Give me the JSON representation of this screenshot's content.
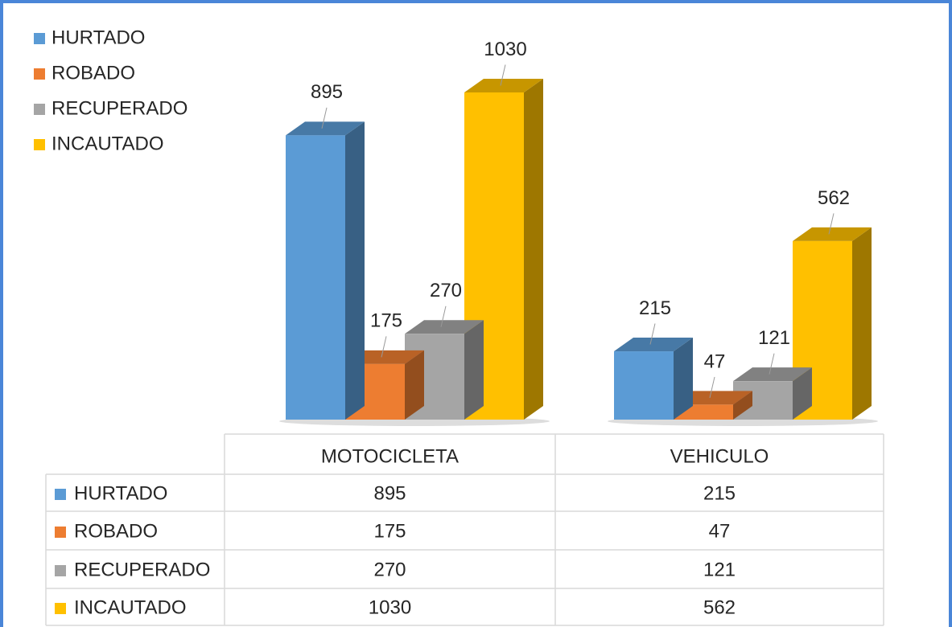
{
  "chart_data": {
    "type": "bar3d",
    "categories": [
      "MOTOCICLETA",
      "VEHICULO"
    ],
    "series": [
      {
        "name": "HURTADO",
        "color": "#5b9bd5",
        "values": [
          895,
          215
        ]
      },
      {
        "name": "ROBADO",
        "color": "#ed7d31",
        "values": [
          175,
          47
        ]
      },
      {
        "name": "RECUPERADO",
        "color": "#a5a5a5",
        "values": [
          270,
          121
        ]
      },
      {
        "name": "INCAUTADO",
        "color": "#ffc000",
        "values": [
          1030,
          562
        ]
      }
    ],
    "legend": "top-left",
    "data_table": true
  }
}
